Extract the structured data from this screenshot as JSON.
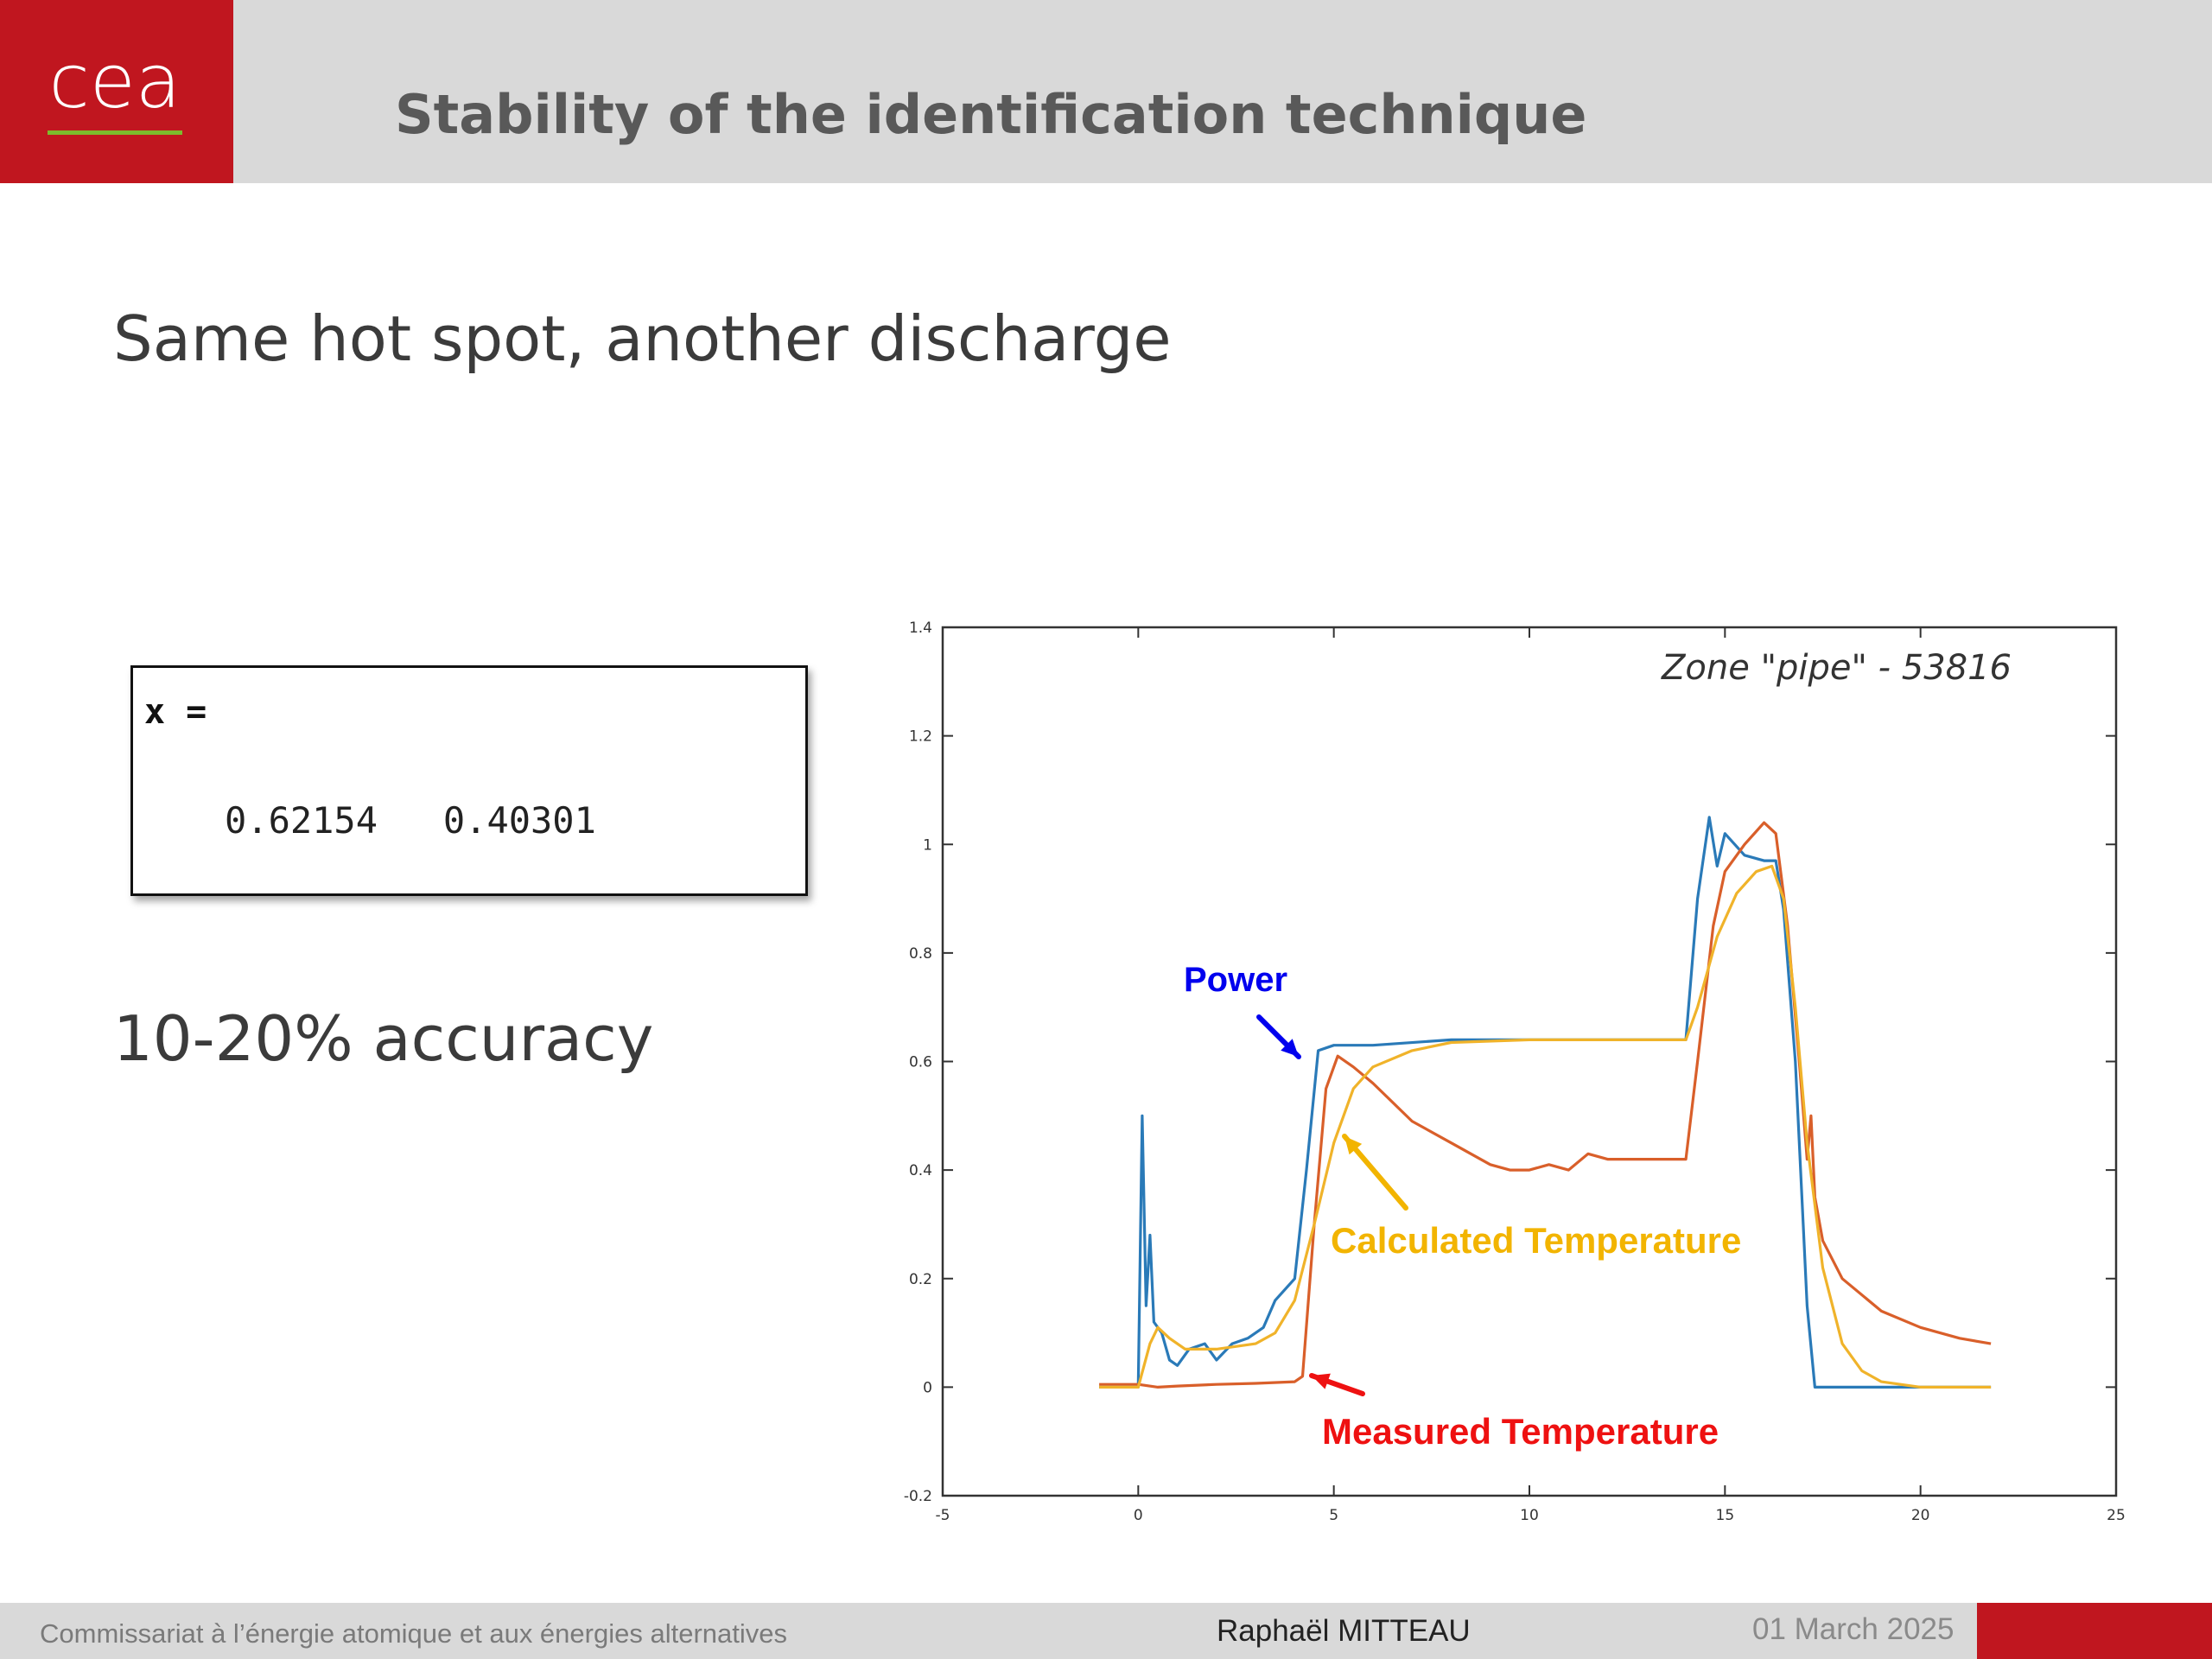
{
  "header": {
    "logo_text": "cea",
    "title": "Stability of the identification technique"
  },
  "content": {
    "subtitle": "Same hot spot, another discharge",
    "matlab": {
      "variable": "x =",
      "values": [
        "0.62154",
        "0.40301"
      ]
    },
    "accuracy": "10-20% accuracy"
  },
  "colors": {
    "brand_red": "#c0161f",
    "brand_green": "#7dbb2c",
    "power": "#2a7ab8",
    "measured": "#d95f2a",
    "calculated": "#f0b32a",
    "power_label": "#0000ee",
    "measured_label": "#ee1111",
    "calculated_label": "#f2b400"
  },
  "chart_data": {
    "type": "line",
    "annotation_title": "Zone \"pipe\" - 53816",
    "xlim": [
      -5,
      25
    ],
    "ylim": [
      -0.2,
      1.4
    ],
    "xticks": [
      -5,
      0,
      5,
      10,
      15,
      20,
      25
    ],
    "yticks": [
      -0.2,
      0,
      0.2,
      0.4,
      0.6,
      0.8,
      1,
      1.2,
      1.4
    ],
    "grid": false,
    "series": [
      {
        "name": "Power",
        "color": "#2a7ab8",
        "points": [
          [
            -1,
            0
          ],
          [
            0,
            0
          ],
          [
            0.1,
            0.5
          ],
          [
            0.2,
            0.15
          ],
          [
            0.3,
            0.28
          ],
          [
            0.4,
            0.12
          ],
          [
            0.6,
            0.1
          ],
          [
            0.8,
            0.05
          ],
          [
            1,
            0.04
          ],
          [
            1.3,
            0.07
          ],
          [
            1.7,
            0.08
          ],
          [
            2,
            0.05
          ],
          [
            2.4,
            0.08
          ],
          [
            2.8,
            0.09
          ],
          [
            3.2,
            0.11
          ],
          [
            3.5,
            0.16
          ],
          [
            4,
            0.2
          ],
          [
            4.3,
            0.4
          ],
          [
            4.6,
            0.62
          ],
          [
            5,
            0.63
          ],
          [
            6,
            0.63
          ],
          [
            8,
            0.64
          ],
          [
            10,
            0.64
          ],
          [
            12,
            0.64
          ],
          [
            14,
            0.64
          ],
          [
            14.3,
            0.9
          ],
          [
            14.6,
            1.05
          ],
          [
            14.8,
            0.96
          ],
          [
            15,
            1.02
          ],
          [
            15.5,
            0.98
          ],
          [
            16,
            0.97
          ],
          [
            16.3,
            0.97
          ],
          [
            16.5,
            0.88
          ],
          [
            16.8,
            0.6
          ],
          [
            17,
            0.3
          ],
          [
            17.1,
            0.15
          ],
          [
            17.3,
            0.0
          ],
          [
            17.5,
            0.0
          ],
          [
            18,
            0
          ],
          [
            20,
            0
          ],
          [
            21.8,
            0
          ]
        ]
      },
      {
        "name": "Measured Temperature",
        "color": "#d95f2a",
        "points": [
          [
            -1,
            0.005
          ],
          [
            0,
            0.005
          ],
          [
            0.5,
            0.0
          ],
          [
            1,
            0.002
          ],
          [
            2,
            0.005
          ],
          [
            3,
            0.007
          ],
          [
            4,
            0.01
          ],
          [
            4.2,
            0.02
          ],
          [
            4.5,
            0.3
          ],
          [
            4.8,
            0.55
          ],
          [
            5.1,
            0.61
          ],
          [
            5.5,
            0.59
          ],
          [
            6,
            0.56
          ],
          [
            7,
            0.49
          ],
          [
            8,
            0.45
          ],
          [
            9,
            0.41
          ],
          [
            9.5,
            0.4
          ],
          [
            10,
            0.4
          ],
          [
            10.5,
            0.41
          ],
          [
            11,
            0.4
          ],
          [
            11.5,
            0.43
          ],
          [
            12,
            0.42
          ],
          [
            13,
            0.42
          ],
          [
            14,
            0.42
          ],
          [
            14.3,
            0.6
          ],
          [
            14.7,
            0.85
          ],
          [
            15,
            0.95
          ],
          [
            15.5,
            1.0
          ],
          [
            16,
            1.04
          ],
          [
            16.3,
            1.02
          ],
          [
            16.6,
            0.85
          ],
          [
            16.9,
            0.6
          ],
          [
            17.1,
            0.42
          ],
          [
            17.2,
            0.5
          ],
          [
            17.3,
            0.35
          ],
          [
            17.5,
            0.27
          ],
          [
            18,
            0.2
          ],
          [
            19,
            0.14
          ],
          [
            20,
            0.11
          ],
          [
            21,
            0.09
          ],
          [
            21.8,
            0.08
          ]
        ]
      },
      {
        "name": "Calculated Temperature",
        "color": "#f0b32a",
        "points": [
          [
            -1,
            0
          ],
          [
            0,
            0
          ],
          [
            0.3,
            0.08
          ],
          [
            0.5,
            0.11
          ],
          [
            0.8,
            0.09
          ],
          [
            1.2,
            0.07
          ],
          [
            2,
            0.07
          ],
          [
            3,
            0.08
          ],
          [
            3.5,
            0.1
          ],
          [
            4,
            0.16
          ],
          [
            4.5,
            0.3
          ],
          [
            5,
            0.45
          ],
          [
            5.5,
            0.55
          ],
          [
            6,
            0.59
          ],
          [
            7,
            0.62
          ],
          [
            8,
            0.635
          ],
          [
            10,
            0.64
          ],
          [
            14,
            0.64
          ],
          [
            14.3,
            0.7
          ],
          [
            14.8,
            0.83
          ],
          [
            15.3,
            0.91
          ],
          [
            15.8,
            0.95
          ],
          [
            16.2,
            0.96
          ],
          [
            16.5,
            0.9
          ],
          [
            16.8,
            0.7
          ],
          [
            17.1,
            0.45
          ],
          [
            17.5,
            0.22
          ],
          [
            18,
            0.08
          ],
          [
            18.5,
            0.03
          ],
          [
            19,
            0.01
          ],
          [
            20,
            0.0
          ],
          [
            21.8,
            0
          ]
        ]
      }
    ],
    "annotations": [
      {
        "text": "Power",
        "color": "#0000ee"
      },
      {
        "text": "Calculated Temperature",
        "color": "#f2b400"
      },
      {
        "text": "Measured Temperature",
        "color": "#ee1111"
      }
    ]
  },
  "footer": {
    "organization": "Commissariat à l’énergie atomique et aux énergies alternatives",
    "author": "Raphaël MITTEAU",
    "date": "01 March 2025"
  }
}
